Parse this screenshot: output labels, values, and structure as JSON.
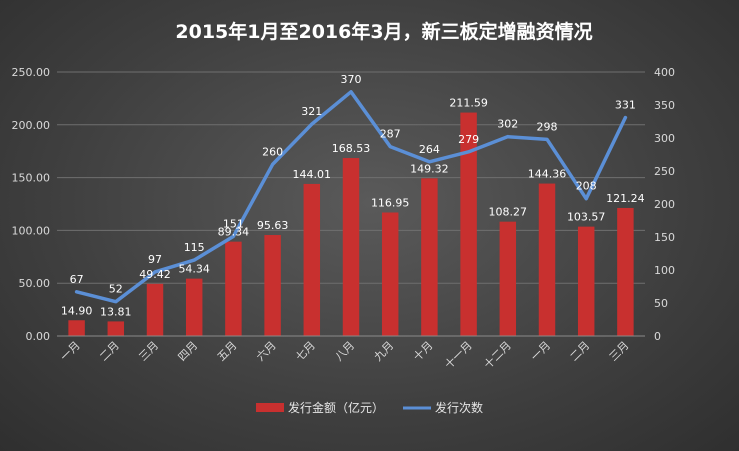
{
  "chart_data": {
    "type": "bar",
    "title": "2015年1月至2016年3月，新三板定增融资情况",
    "categories": [
      "一月",
      "二月",
      "三月",
      "四月",
      "五月",
      "六月",
      "七月",
      "八月",
      "九月",
      "十月",
      "十一月",
      "十二月",
      "一月",
      "二月",
      "三月"
    ],
    "series": [
      {
        "name": "发行金额（亿元）",
        "type": "bar",
        "axis": "left",
        "color": "#c8302f",
        "values": [
          14.9,
          13.81,
          49.42,
          54.34,
          89.34,
          95.63,
          144.01,
          168.53,
          116.95,
          149.32,
          211.59,
          108.27,
          144.36,
          103.57,
          121.24
        ],
        "labels": [
          "14.90",
          "13.81",
          "49.42",
          "54.34",
          "89.34",
          "95.63",
          "144.01",
          "168.53",
          "116.95",
          "149.32",
          "211.59",
          "108.27",
          "144.36",
          "103.57",
          "121.24"
        ]
      },
      {
        "name": "发行次数",
        "type": "line",
        "axis": "right",
        "color": "#5b8fd6",
        "values": [
          67,
          52,
          97,
          115,
          151,
          260,
          321,
          370,
          287,
          264,
          279,
          302,
          298,
          208,
          331
        ],
        "labels": [
          "67",
          "52",
          "97",
          "115",
          "151",
          "260",
          "321",
          "370",
          "287",
          "264",
          "279",
          "302",
          "298",
          "208",
          "331"
        ]
      }
    ],
    "y_left": {
      "min": 0,
      "max": 250,
      "ticks": [
        "0.00",
        "50.00",
        "100.00",
        "150.00",
        "200.00",
        "250.00"
      ]
    },
    "y_right": {
      "min": 0,
      "max": 400,
      "ticks": [
        "0",
        "50",
        "100",
        "150",
        "200",
        "250",
        "300",
        "350",
        "400"
      ]
    },
    "grid": true,
    "legend": "bottom"
  }
}
